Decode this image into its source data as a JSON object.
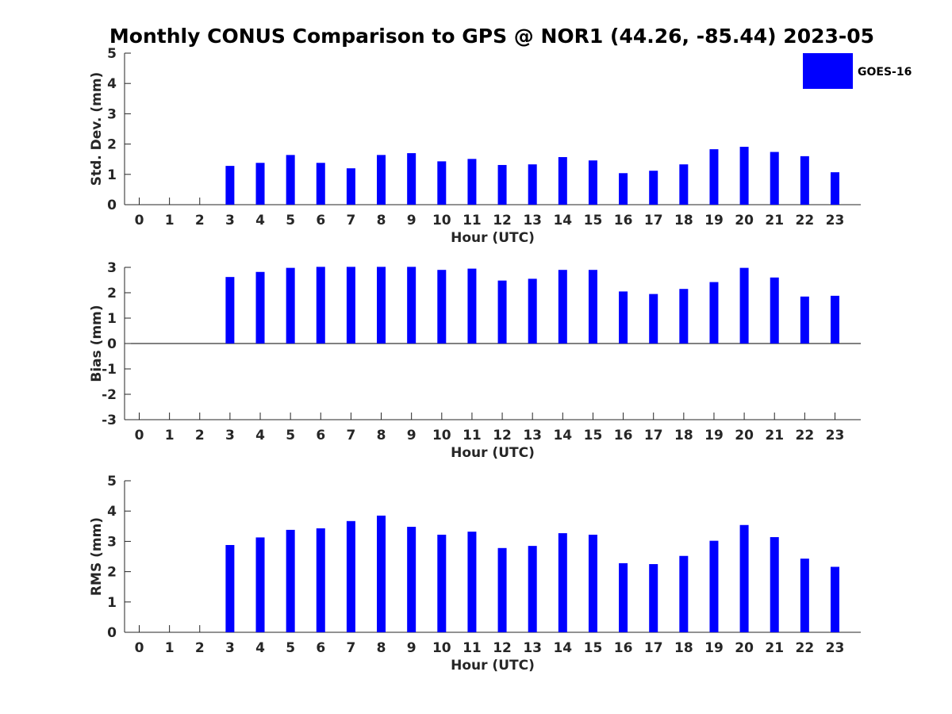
{
  "figure": {
    "title": "Monthly CONUS Comparison to GPS @ NOR1 (44.26, -85.44) 2023-05",
    "legend": {
      "label": "GOES-16",
      "color": "#0000FF",
      "placement": "top-right"
    }
  },
  "chart_data": [
    {
      "type": "bar",
      "xlabel": "Hour (UTC)",
      "ylabel": "Std. Dev. (mm)",
      "ylim": [
        0,
        5
      ],
      "yticks": [
        0,
        1,
        2,
        3,
        4,
        5
      ],
      "categories": [
        0,
        1,
        2,
        3,
        4,
        5,
        6,
        7,
        8,
        9,
        10,
        11,
        12,
        13,
        14,
        15,
        16,
        17,
        18,
        19,
        20,
        21,
        22,
        23
      ],
      "series": [
        {
          "name": "GOES-16",
          "color": "#0000FF",
          "values": [
            null,
            null,
            null,
            1.28,
            1.38,
            1.64,
            1.38,
            1.2,
            1.64,
            1.7,
            1.43,
            1.51,
            1.31,
            1.33,
            1.57,
            1.46,
            1.04,
            1.12,
            1.33,
            1.83,
            1.91,
            1.74,
            1.6,
            1.07
          ]
        }
      ]
    },
    {
      "type": "bar",
      "xlabel": "Hour (UTC)",
      "ylabel": "Bias (mm)",
      "ylim": [
        -3,
        3
      ],
      "yticks": [
        -3,
        -2,
        -1,
        0,
        1,
        2,
        3
      ],
      "categories": [
        0,
        1,
        2,
        3,
        4,
        5,
        6,
        7,
        8,
        9,
        10,
        11,
        12,
        13,
        14,
        15,
        16,
        17,
        18,
        19,
        20,
        21,
        22,
        23
      ],
      "series": [
        {
          "name": "GOES-16",
          "color": "#0000FF",
          "values": [
            null,
            null,
            null,
            2.62,
            2.82,
            2.98,
            3.02,
            3.02,
            3.02,
            3.02,
            2.9,
            2.95,
            2.48,
            2.55,
            2.9,
            2.9,
            2.05,
            1.95,
            2.15,
            2.42,
            2.98,
            2.6,
            1.85,
            1.88
          ]
        }
      ]
    },
    {
      "type": "bar",
      "xlabel": "Hour (UTC)",
      "ylabel": "RMS (mm)",
      "ylim": [
        0,
        5
      ],
      "yticks": [
        0,
        1,
        2,
        3,
        4,
        5
      ],
      "categories": [
        0,
        1,
        2,
        3,
        4,
        5,
        6,
        7,
        8,
        9,
        10,
        11,
        12,
        13,
        14,
        15,
        16,
        17,
        18,
        19,
        20,
        21,
        22,
        23
      ],
      "series": [
        {
          "name": "GOES-16",
          "color": "#0000FF",
          "values": [
            null,
            null,
            null,
            2.88,
            3.13,
            3.38,
            3.43,
            3.67,
            3.85,
            3.48,
            3.22,
            3.32,
            2.78,
            2.85,
            3.27,
            3.22,
            2.28,
            2.25,
            2.52,
            3.02,
            3.54,
            3.14,
            2.43,
            2.16
          ]
        }
      ]
    }
  ]
}
